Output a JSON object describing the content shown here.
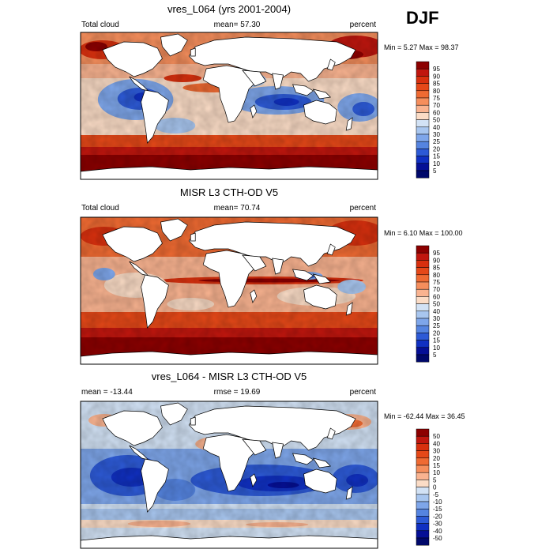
{
  "season": "DJF",
  "chart_data": [
    {
      "type": "heatmap",
      "title": "vres_L064 (yrs 2001-2004)",
      "left_label": "Total cloud",
      "center_label": "mean=  57.30",
      "right_label": "percent",
      "stats": "Min =   5.27 Max =  98.37",
      "mean": 57.3,
      "min": 5.27,
      "max": 98.37,
      "colorbar_levels": [
        "95",
        "90",
        "85",
        "80",
        "75",
        "70",
        "60",
        "50",
        "40",
        "30",
        "25",
        "20",
        "15",
        "10",
        "5"
      ],
      "colors": [
        "#8c0000",
        "#c0160e",
        "#d8300e",
        "#e54818",
        "#ef6a32",
        "#f58e5c",
        "#f9b390",
        "#fbdcc6",
        "#d2e2f5",
        "#a8c6ef",
        "#7ea6ea",
        "#5584e0",
        "#2d5ad6",
        "#1030c2",
        "#050f96",
        "#00086a"
      ]
    },
    {
      "type": "heatmap",
      "title": "MISR L3 CTH-OD V5",
      "left_label": "Total cloud",
      "center_label": "mean=  70.74",
      "right_label": "percent",
      "stats": "Min =   6.10 Max = 100.00",
      "mean": 70.74,
      "min": 6.1,
      "max": 100.0,
      "colorbar_levels": [
        "95",
        "90",
        "85",
        "80",
        "75",
        "70",
        "60",
        "50",
        "40",
        "30",
        "25",
        "20",
        "15",
        "10",
        "5"
      ],
      "colors": [
        "#8c0000",
        "#c0160e",
        "#d8300e",
        "#e54818",
        "#ef6a32",
        "#f58e5c",
        "#f9b390",
        "#fbdcc6",
        "#d2e2f5",
        "#a8c6ef",
        "#7ea6ea",
        "#5584e0",
        "#2d5ad6",
        "#1030c2",
        "#050f96",
        "#00086a"
      ]
    },
    {
      "type": "heatmap",
      "title": "vres_L064 - MISR L3 CTH-OD V5",
      "left_label": "mean = -13.44",
      "center_label": "rmse =  19.69",
      "right_label": "percent",
      "stats": "Min = -62.44 Max =  36.45",
      "mean": -13.44,
      "rmse": 19.69,
      "min": -62.44,
      "max": 36.45,
      "colorbar_levels": [
        "50",
        "40",
        "30",
        "20",
        "15",
        "10",
        "5",
        "0",
        "-5",
        "-10",
        "-15",
        "-20",
        "-30",
        "-40",
        "-50"
      ],
      "colors": [
        "#8c0000",
        "#c0160e",
        "#d8300e",
        "#e54818",
        "#ef6a32",
        "#f58e5c",
        "#f9b390",
        "#fbdcc6",
        "#d2e2f5",
        "#a8c6ef",
        "#7ea6ea",
        "#5584e0",
        "#2d5ad6",
        "#1030c2",
        "#050f96",
        "#00086a"
      ]
    }
  ]
}
